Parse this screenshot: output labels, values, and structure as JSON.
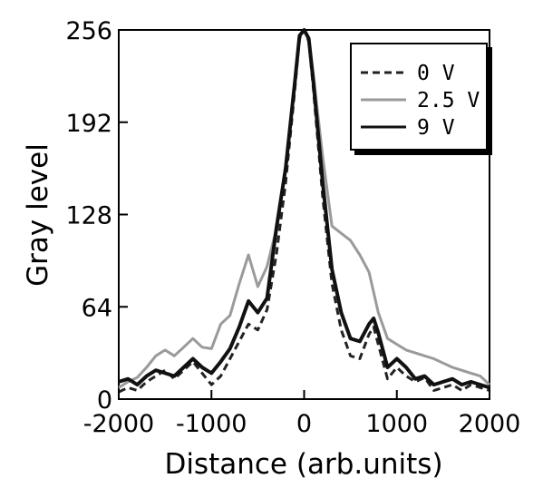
{
  "chart_data": {
    "type": "line",
    "xlabel": "Distance (arb.units)",
    "ylabel": "Gray level",
    "xlim": [
      -2000,
      2000
    ],
    "ylim": [
      0,
      256
    ],
    "xticks": [
      -2000,
      -1000,
      0,
      1000,
      2000
    ],
    "yticks": [
      0,
      64,
      128,
      192,
      256
    ],
    "xtick_labels": [
      "-2000",
      "-1000",
      "0",
      "1000",
      "2000"
    ],
    "ytick_labels": [
      "0",
      "64",
      "128",
      "192",
      "256"
    ],
    "grid": false,
    "legend_position": "top-right",
    "series": [
      {
        "name": "0 V",
        "style": "dashed",
        "color": "#222222",
        "x": [
          -2000,
          -1900,
          -1800,
          -1700,
          -1600,
          -1500,
          -1400,
          -1300,
          -1200,
          -1100,
          -1000,
          -900,
          -800,
          -700,
          -600,
          -500,
          -400,
          -300,
          -200,
          -100,
          -50,
          0,
          50,
          100,
          200,
          300,
          400,
          500,
          600,
          700,
          750,
          800,
          900,
          1000,
          1100,
          1200,
          1300,
          1400,
          1500,
          1600,
          1700,
          1800,
          1900,
          2000
        ],
        "y": [
          5,
          8,
          6,
          12,
          16,
          20,
          14,
          20,
          26,
          18,
          10,
          16,
          28,
          40,
          52,
          48,
          62,
          100,
          150,
          215,
          250,
          256,
          248,
          215,
          140,
          80,
          48,
          30,
          28,
          45,
          50,
          38,
          14,
          22,
          16,
          12,
          15,
          6,
          8,
          10,
          6,
          10,
          8,
          6
        ]
      },
      {
        "name": "2.5 V",
        "style": "solid",
        "color": "#9a9a9a",
        "x": [
          -2000,
          -1900,
          -1800,
          -1700,
          -1600,
          -1500,
          -1400,
          -1300,
          -1200,
          -1100,
          -1000,
          -900,
          -800,
          -700,
          -600,
          -500,
          -400,
          -300,
          -200,
          -100,
          -50,
          0,
          50,
          100,
          200,
          300,
          400,
          500,
          600,
          700,
          800,
          900,
          1000,
          1100,
          1200,
          1300,
          1400,
          1500,
          1600,
          1700,
          1800,
          1900,
          2000
        ],
        "y": [
          8,
          12,
          15,
          22,
          30,
          34,
          30,
          36,
          42,
          36,
          35,
          52,
          58,
          80,
          100,
          78,
          92,
          118,
          158,
          220,
          252,
          256,
          250,
          225,
          168,
          120,
          115,
          110,
          100,
          88,
          60,
          42,
          38,
          34,
          32,
          30,
          28,
          25,
          22,
          20,
          18,
          16,
          10
        ]
      },
      {
        "name": "9 V",
        "style": "solid",
        "color": "#111111",
        "x": [
          -2000,
          -1900,
          -1800,
          -1700,
          -1600,
          -1500,
          -1400,
          -1300,
          -1200,
          -1100,
          -1000,
          -900,
          -800,
          -700,
          -600,
          -500,
          -400,
          -300,
          -200,
          -100,
          -50,
          0,
          50,
          100,
          200,
          300,
          400,
          500,
          600,
          700,
          750,
          800,
          900,
          1000,
          1100,
          1200,
          1300,
          1400,
          1500,
          1600,
          1700,
          1800,
          1900,
          2000
        ],
        "y": [
          12,
          14,
          10,
          16,
          20,
          18,
          16,
          22,
          28,
          22,
          18,
          26,
          35,
          50,
          68,
          60,
          70,
          118,
          160,
          220,
          252,
          256,
          250,
          220,
          150,
          90,
          60,
          42,
          40,
          52,
          56,
          46,
          22,
          28,
          22,
          14,
          16,
          10,
          12,
          14,
          10,
          12,
          10,
          8
        ]
      }
    ]
  }
}
